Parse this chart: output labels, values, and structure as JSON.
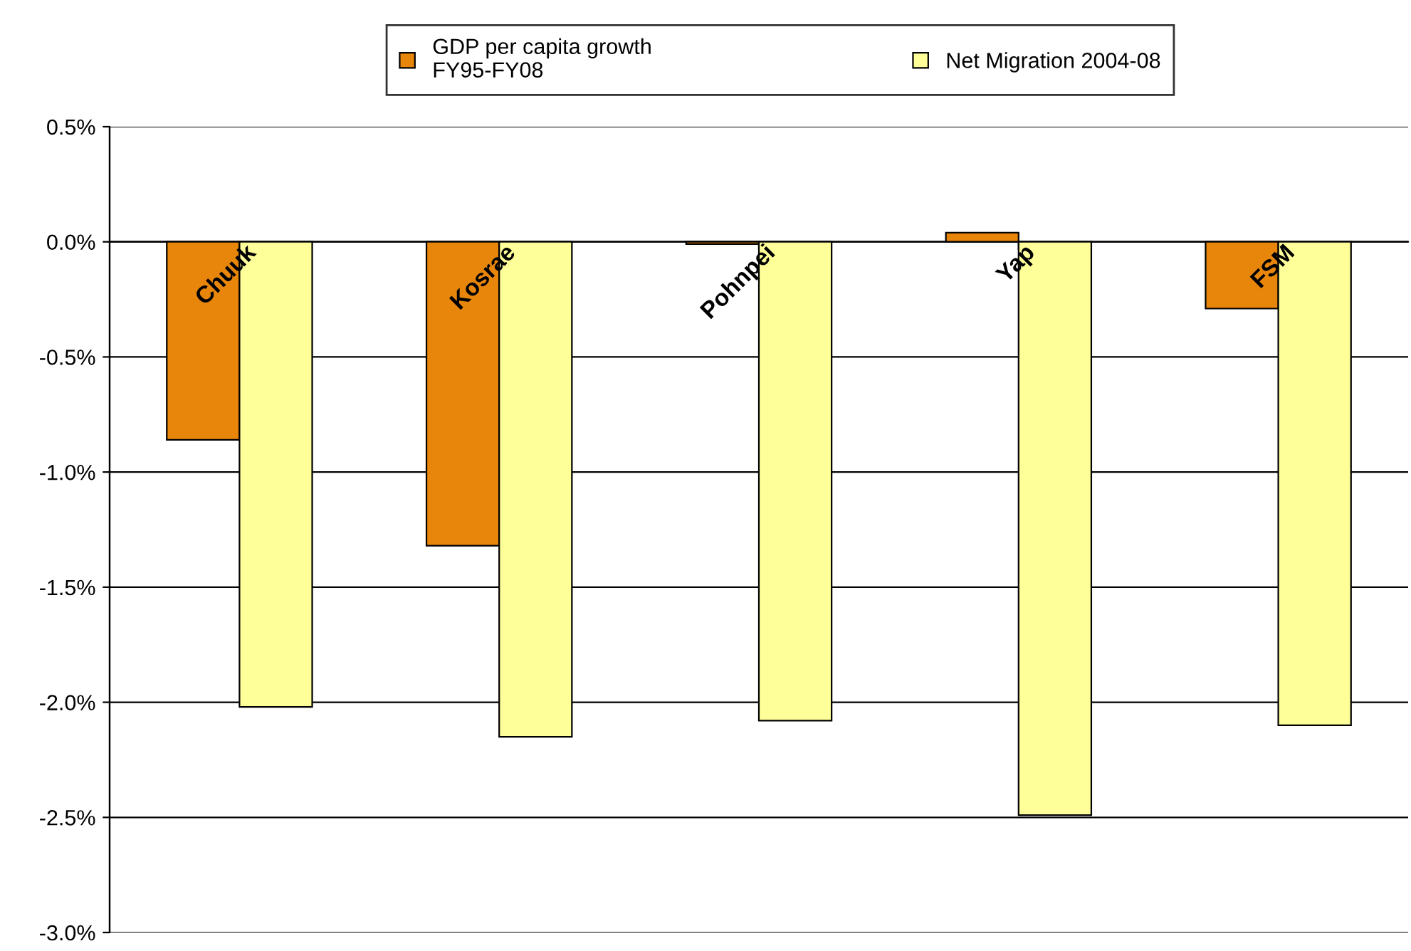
{
  "chart_data": {
    "type": "bar",
    "categories": [
      "Chuuk",
      "Kosrae",
      "Pohnpei",
      "Yap",
      "FSM"
    ],
    "series": [
      {
        "name": "GDP per capita growth\nFY95-FY08",
        "color": "#e8860c",
        "values": [
          -0.86,
          -1.32,
          -0.01,
          0.04,
          -0.29
        ]
      },
      {
        "name": "Net Migration 2004-08",
        "color": "#ffff99",
        "values": [
          -2.02,
          -2.15,
          -2.08,
          -2.49,
          -2.1
        ]
      }
    ],
    "ylim": [
      -3.0,
      0.5
    ],
    "yticks": [
      {
        "value": -3.0,
        "label": "-3.0%"
      },
      {
        "value": -2.5,
        "label": "-2.5%"
      },
      {
        "value": -2.0,
        "label": "-2.0%"
      },
      {
        "value": -1.5,
        "label": "-1.5%"
      },
      {
        "value": -1.0,
        "label": "-1.0%"
      },
      {
        "value": -0.5,
        "label": "-0.5%"
      },
      {
        "value": 0.0,
        "label": "0.0%"
      },
      {
        "value": 0.5,
        "label": "0.5%"
      }
    ],
    "grid": "y",
    "legend": "top"
  }
}
